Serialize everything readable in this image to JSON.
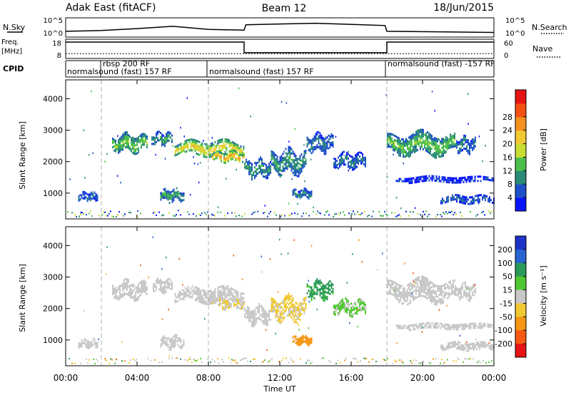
{
  "header": {
    "station": "Adak East (fitACF)",
    "beam": "Beam 12",
    "date": "18/Jun/2015"
  },
  "panels": {
    "nsky": {
      "label": "N.Sky",
      "right_label": "N.Search",
      "ticks": [
        "10^5",
        "10^0"
      ],
      "right_ticks": [
        "10^5",
        "10^0"
      ]
    },
    "freq": {
      "label_line1": "Freq.",
      "label_line2": "[MHz]",
      "ticks": [
        "18",
        "8"
      ],
      "right_label": "Nave",
      "right_ticks": [
        "60",
        "0"
      ]
    },
    "cpid": {
      "label": "CPID",
      "segments": [
        {
          "text": "normalsound (fast) 157 RF",
          "start_h": 0,
          "end_h": 2
        },
        {
          "text": "rbsp 200 RF",
          "start_h": 2,
          "end_h": 2
        },
        {
          "text": "normalsound (fast) 157 RF",
          "start_h": 2,
          "end_h": 8
        },
        {
          "text": "normalsound (fast) 157 RF",
          "start_h": 8,
          "end_h": 18
        },
        {
          "text": "normalsound (fast) -157 RF",
          "start_h": 18,
          "end_h": 24
        }
      ]
    },
    "power": {
      "ylabel": "Slant Range [km]",
      "yticks": [
        "1000",
        "2000",
        "3000",
        "4000"
      ],
      "cbar_label": "Power [dB]",
      "cbar_ticks": [
        "4",
        "8",
        "12",
        "16",
        "20",
        "24",
        "28"
      ],
      "cbar_colors": [
        "#0a14ff",
        "#1e50c8",
        "#2a8a78",
        "#4bbf4b",
        "#c8dc32",
        "#f0c832",
        "#f5911e",
        "#f55014",
        "#e61414"
      ]
    },
    "velocity": {
      "ylabel": "Slant Range [km]",
      "yticks": [
        "1000",
        "2000",
        "3000",
        "4000"
      ],
      "cbar_label": "Velocity [m s⁻¹]",
      "cbar_ticks": [
        "200",
        "100",
        "50",
        "15",
        "-15",
        "-50",
        "-100",
        "-200"
      ],
      "cbar_colors": [
        "#1e32c8",
        "#2864d2",
        "#2a9a5a",
        "#50c832",
        "#c8c8c8",
        "#f0c832",
        "#f59614",
        "#f55a14",
        "#e61414"
      ]
    }
  },
  "xaxis": {
    "label": "Time UT",
    "ticks": [
      "00:00",
      "04:00",
      "08:00",
      "12:00",
      "16:00",
      "20:00",
      "00:00"
    ]
  },
  "chart_data": {
    "type": "heatmap",
    "x_range_hours": [
      0,
      24
    ],
    "y_range_km": [
      180,
      4600
    ],
    "vertical_markers_h": [
      2,
      8,
      18
    ],
    "nsky_log_range": [
      0,
      5
    ],
    "freq_range_mhz": [
      8,
      18
    ],
    "freq_series": [
      {
        "start_h": 0,
        "end_h": 10,
        "mhz": 16.5
      },
      {
        "start_h": 10,
        "end_h": 18,
        "mhz": 11
      },
      {
        "start_h": 18,
        "end_h": 24,
        "mhz": 16.5
      }
    ],
    "nave_range": [
      0,
      60
    ],
    "nave_value": 15,
    "nsky_series": [
      {
        "h": 0,
        "v": 1.5
      },
      {
        "h": 2,
        "v": 1.7
      },
      {
        "h": 4,
        "v": 2.2
      },
      {
        "h": 6,
        "v": 2.8
      },
      {
        "h": 8,
        "v": 2.0
      },
      {
        "h": 10,
        "v": 1.8
      },
      {
        "h": 10.1,
        "v": 3.2
      },
      {
        "h": 14,
        "v": 3.6
      },
      {
        "h": 17.9,
        "v": 3.0
      },
      {
        "h": 18,
        "v": 1.5
      },
      {
        "h": 24,
        "v": 1.2
      }
    ],
    "echo_regions": [
      {
        "h0": 2.6,
        "h1": 4.6,
        "r0": 2300,
        "r1": 2900,
        "power": 16,
        "vel": 0
      },
      {
        "h0": 4.8,
        "h1": 6.0,
        "r0": 2550,
        "r1": 2950,
        "power": 13,
        "vel": 0
      },
      {
        "h0": 6.1,
        "h1": 10.0,
        "r0": 2200,
        "r1": 2700,
        "power": 22,
        "vel": 0
      },
      {
        "h0": 8.2,
        "h1": 10.0,
        "r0": 2000,
        "r1": 2350,
        "power": 26,
        "vel": -10
      },
      {
        "h0": 10.0,
        "h1": 11.5,
        "r0": 1500,
        "r1": 2100,
        "power": 12,
        "vel": 0
      },
      {
        "h0": 11.5,
        "h1": 13.5,
        "r0": 1600,
        "r1": 2400,
        "power": 12,
        "vel": -20
      },
      {
        "h0": 13.5,
        "h1": 15.0,
        "r0": 2300,
        "r1": 2900,
        "power": 10,
        "vel": 40
      },
      {
        "h0": 15.0,
        "h1": 16.8,
        "r0": 1800,
        "r1": 2300,
        "power": 9,
        "vel": 20
      },
      {
        "h0": 0.7,
        "h1": 1.8,
        "r0": 750,
        "r1": 1050,
        "power": 9,
        "vel": 0
      },
      {
        "h0": 5.3,
        "h1": 6.6,
        "r0": 750,
        "r1": 1150,
        "power": 13,
        "vel": 0
      },
      {
        "h0": 12.7,
        "h1": 13.8,
        "r0": 850,
        "r1": 1150,
        "power": 10,
        "vel": -60
      },
      {
        "h0": 18.0,
        "h1": 21.8,
        "r0": 2200,
        "r1": 2950,
        "power": 16,
        "vel": 0
      },
      {
        "h0": 21.8,
        "h1": 23.0,
        "r0": 2300,
        "r1": 2800,
        "power": 10,
        "vel": 0
      },
      {
        "h0": 18.5,
        "h1": 24.0,
        "r0": 1350,
        "r1": 1550,
        "power": 5,
        "vel": 0
      },
      {
        "h0": 21.0,
        "h1": 24.0,
        "r0": 700,
        "r1": 950,
        "power": 8,
        "vel": 0
      }
    ]
  }
}
